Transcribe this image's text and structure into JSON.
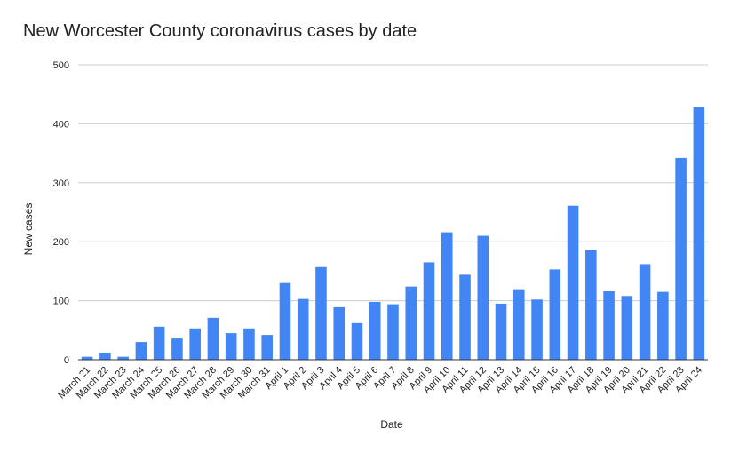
{
  "chart_data": {
    "type": "bar",
    "title": "New Worcester County coronavirus cases by date",
    "xlabel": "Date",
    "ylabel": "New cases",
    "ylim": [
      0,
      500
    ],
    "yticks": [
      "0",
      "100",
      "200",
      "300",
      "400",
      "500"
    ],
    "grid": true,
    "legend": "none",
    "bar_color": "#4285f4",
    "categories": [
      "March 21",
      "March 22",
      "March 23",
      "March 24",
      "March 25",
      "March 26",
      "March 27",
      "March 28",
      "March 29",
      "March 30",
      "March 31",
      "April 1",
      "April 2",
      "April 3",
      "April 4",
      "April 5",
      "April 6",
      "April 7",
      "April 8",
      "April 9",
      "April 10",
      "April 11",
      "April 12",
      "April 13",
      "April 14",
      "April 15",
      "April 16",
      "April 17",
      "April 18",
      "April 19",
      "April 20",
      "April 21",
      "April 22",
      "April 23",
      "April 24"
    ],
    "values": [
      5,
      12,
      5,
      30,
      56,
      36,
      53,
      71,
      45,
      53,
      42,
      130,
      103,
      157,
      89,
      62,
      98,
      94,
      124,
      165,
      216,
      144,
      210,
      95,
      118,
      102,
      153,
      261,
      186,
      116,
      108,
      162,
      115,
      342,
      429
    ]
  }
}
